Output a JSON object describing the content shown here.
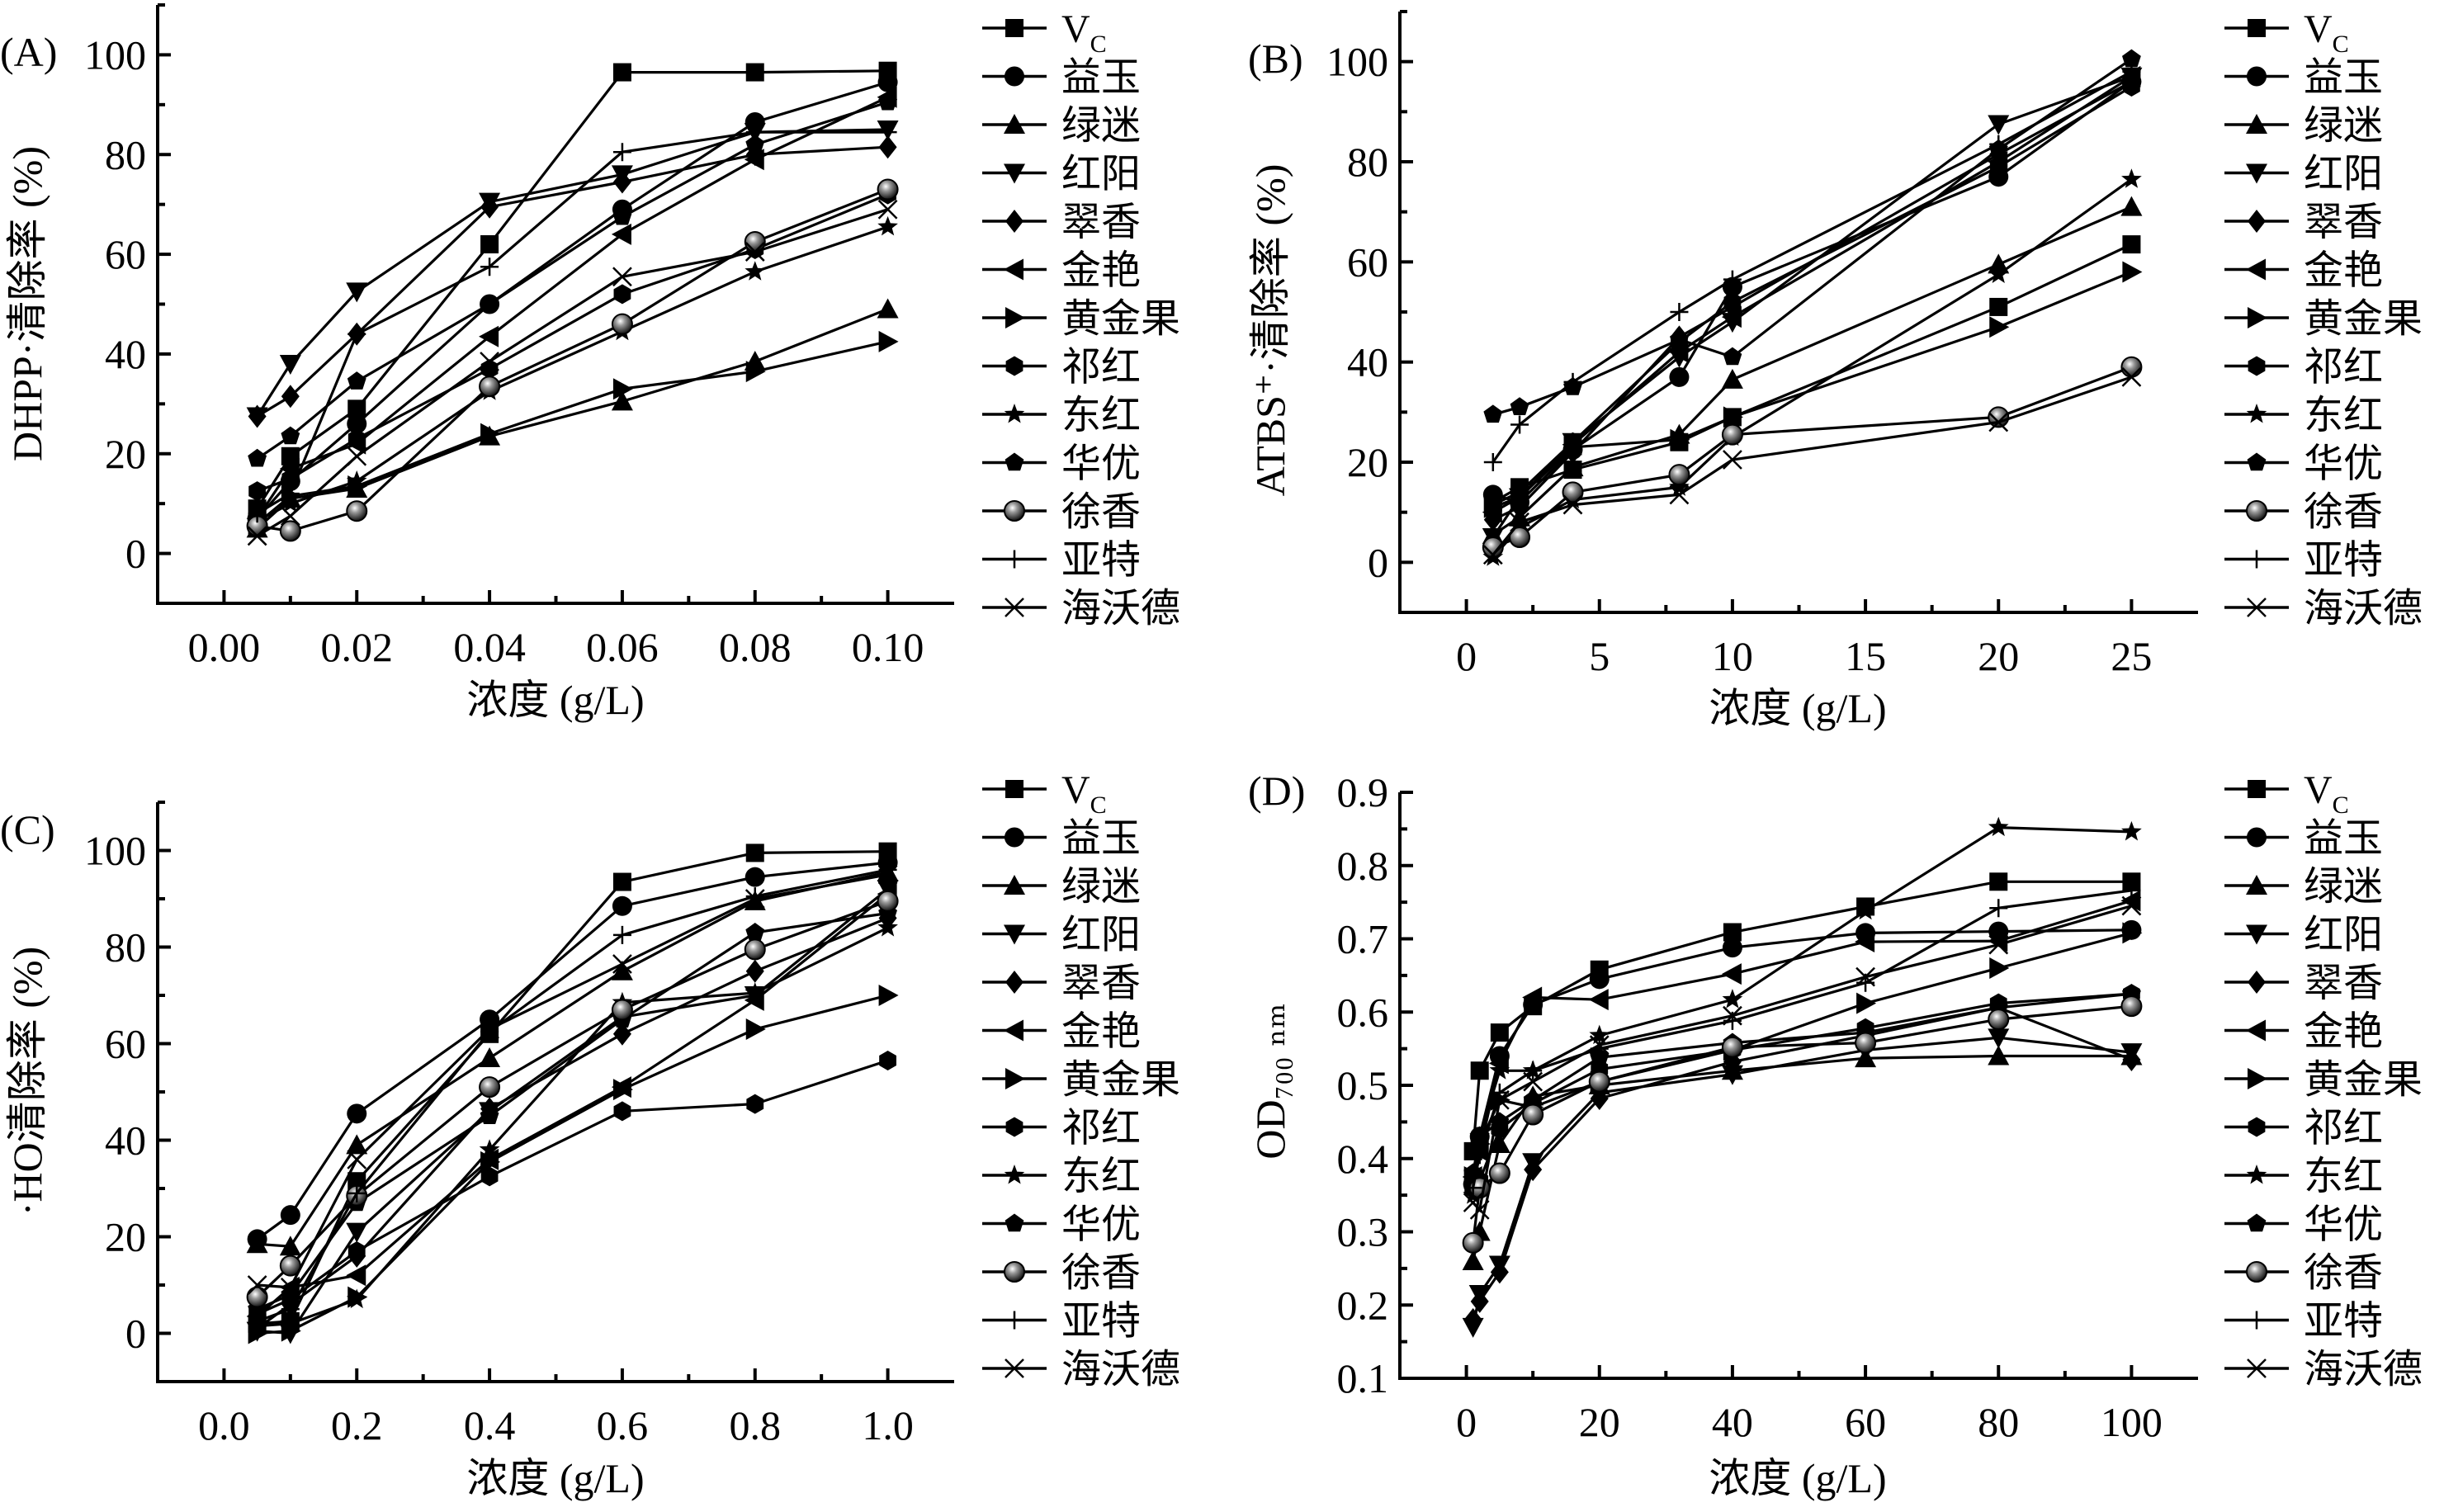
{
  "figure": {
    "legend_entries": [
      "V_C",
      "益玉",
      "绿迷",
      "红阳",
      "翠香",
      "金艳",
      "黄金果",
      "祁红",
      "东红",
      "华优",
      "徐香",
      "亚特",
      "海沃德"
    ],
    "legend_markers": [
      "square",
      "circle",
      "triangle-up",
      "triangle-down",
      "diamond",
      "triangle-left",
      "triangle-right",
      "hexagon",
      "star",
      "pentagon",
      "sphere",
      "plus",
      "cross"
    ]
  },
  "chart_data": [
    {
      "id": "A",
      "type": "line",
      "panel_label": "(A)",
      "title": "",
      "xlabel": "浓度 (g/L)",
      "ylabel": "DHPP·清除率 (%)",
      "xlim": [
        -0.01,
        0.11
      ],
      "ylim": [
        -10,
        110
      ],
      "xticks": [
        0.0,
        0.02,
        0.04,
        0.06,
        0.08,
        0.1
      ],
      "xtick_labels": [
        "0.00",
        "0.02",
        "0.04",
        "0.06",
        "0.08",
        "0.10"
      ],
      "yticks": [
        0,
        20,
        40,
        60,
        80,
        100
      ],
      "ytick_labels": [
        "0",
        "20",
        "40",
        "60",
        "80",
        "100"
      ],
      "legend_position": "right",
      "grid": false,
      "x": [
        0.005,
        0.01,
        0.02,
        0.04,
        0.06,
        0.08,
        0.1
      ],
      "series": [
        {
          "name": "V_C",
          "values": [
            9,
            19.5,
            29,
            62,
            96.5,
            96.5,
            96.8
          ]
        },
        {
          "name": "益玉",
          "values": [
            7,
            14.5,
            26,
            50,
            69,
            86.5,
            94.5
          ]
        },
        {
          "name": "绿迷",
          "values": [
            5,
            11,
            13,
            23.5,
            30.5,
            38.5,
            49
          ]
        },
        {
          "name": "红阳",
          "values": [
            27.5,
            38,
            52.5,
            70.5,
            76,
            84.5,
            85
          ]
        },
        {
          "name": "翠香",
          "values": [
            27.5,
            31.5,
            44,
            69.5,
            74.5,
            80,
            81.5
          ]
        },
        {
          "name": "金艳",
          "values": [
            7,
            17,
            22,
            43.5,
            64,
            79,
            91.5
          ]
        },
        {
          "name": "黄金果",
          "values": [
            6,
            11.5,
            13.5,
            24,
            33,
            36.5,
            42.5
          ]
        },
        {
          "name": "祁红",
          "values": [
            12.5,
            15,
            23,
            37,
            52,
            61,
            72
          ]
        },
        {
          "name": "东红",
          "values": [
            6.5,
            10,
            14.5,
            32.5,
            44.5,
            56.5,
            65.5
          ]
        },
        {
          "name": "华优",
          "values": [
            19,
            23.5,
            34.5,
            50,
            67.5,
            82,
            90.5
          ]
        },
        {
          "name": "徐香",
          "values": [
            5.5,
            4.5,
            8.5,
            33.5,
            46,
            62.5,
            73
          ]
        },
        {
          "name": "亚特",
          "values": [
            8,
            12,
            44,
            57.5,
            80.5,
            84.5,
            84.5
          ]
        },
        {
          "name": "海沃德",
          "values": [
            3.5,
            7.5,
            19.5,
            38.5,
            55.5,
            60.5,
            69
          ]
        }
      ]
    },
    {
      "id": "B",
      "type": "line",
      "panel_label": "(B)",
      "title": "",
      "xlabel": "浓度 (g/L)",
      "ylabel": "ATBS⁺·清除率 (%)",
      "xlim": [
        -2.5,
        27.5
      ],
      "ylim": [
        -10,
        110
      ],
      "xticks": [
        0,
        5,
        10,
        15,
        20,
        25
      ],
      "xtick_labels": [
        "0",
        "5",
        "10",
        "15",
        "20",
        "25"
      ],
      "yticks": [
        0,
        20,
        40,
        60,
        80,
        100
      ],
      "ytick_labels": [
        "0",
        "20",
        "40",
        "60",
        "80",
        "100"
      ],
      "legend_position": "right",
      "grid": false,
      "x": [
        1,
        2,
        4,
        8,
        10,
        20,
        25
      ],
      "series": [
        {
          "name": "V_C",
          "values": [
            12,
            15,
            18.5,
            24,
            29,
            51,
            63.5
          ]
        },
        {
          "name": "益玉",
          "values": [
            13.5,
            12,
            22.5,
            37,
            55,
            77,
            96
          ]
        },
        {
          "name": "绿迷",
          "values": [
            5.5,
            9,
            19,
            25.5,
            36.5,
            59.5,
            71
          ]
        },
        {
          "name": "红阳",
          "values": [
            5,
            13,
            24,
            41,
            48,
            87.5,
            97
          ]
        },
        {
          "name": "翠香",
          "values": [
            8.5,
            11,
            22,
            45,
            51,
            81.5,
            96
          ]
        },
        {
          "name": "金艳",
          "values": [
            10,
            13,
            23.5,
            42,
            49,
            80,
            97
          ]
        },
        {
          "name": "黄金果",
          "values": [
            11,
            13,
            23,
            24.5,
            29,
            47,
            58
          ]
        },
        {
          "name": "祁红",
          "values": [
            11.5,
            14,
            24,
            44,
            52,
            79,
            95
          ]
        },
        {
          "name": "东红",
          "values": [
            1,
            7,
            12.5,
            15,
            25,
            57.5,
            76.5
          ]
        },
        {
          "name": "华优",
          "values": [
            29.5,
            31,
            35,
            44.5,
            41,
            82.5,
            100.5
          ]
        },
        {
          "name": "徐香",
          "values": [
            3,
            5,
            14,
            17.5,
            25.5,
            29,
            39
          ]
        },
        {
          "name": "亚特",
          "values": [
            20,
            27.5,
            36,
            50,
            56.5,
            83.5,
            98
          ]
        },
        {
          "name": "海沃德",
          "values": [
            1.5,
            8,
            11.5,
            13.5,
            20.5,
            28,
            37
          ]
        }
      ]
    },
    {
      "id": "C",
      "type": "line",
      "panel_label": "(C)",
      "title": "",
      "xlabel": "浓度 (g/L)",
      "ylabel": "·HO清除率 (%)",
      "xlim": [
        -0.1,
        1.1
      ],
      "ylim": [
        -10,
        110
      ],
      "xticks": [
        0.0,
        0.2,
        0.4,
        0.6,
        0.8,
        1.0
      ],
      "xtick_labels": [
        "0.0",
        "0.2",
        "0.4",
        "0.6",
        "0.8",
        "1.0"
      ],
      "yticks": [
        0,
        20,
        40,
        60,
        80,
        100
      ],
      "ytick_labels": [
        "0",
        "20",
        "40",
        "60",
        "80",
        "100"
      ],
      "legend_position": "right",
      "grid": false,
      "x": [
        0.05,
        0.1,
        0.2,
        0.4,
        0.6,
        0.8,
        1.0
      ],
      "series": [
        {
          "name": "V_C",
          "values": [
            2,
            2.5,
            31.5,
            62,
            93.5,
            99.5,
            99.8
          ]
        },
        {
          "name": "益玉",
          "values": [
            19.5,
            24.5,
            45.5,
            65,
            88.5,
            94.5,
            97.5
          ]
        },
        {
          "name": "绿迷",
          "values": [
            18.5,
            18,
            39,
            57,
            75,
            89.5,
            95.5
          ]
        },
        {
          "name": "红阳",
          "values": [
            0.5,
            0,
            21,
            46,
            65.5,
            70,
            92
          ]
        },
        {
          "name": "翠香",
          "values": [
            1,
            6,
            16,
            46.5,
            62,
            75,
            86
          ]
        },
        {
          "name": "金艳",
          "values": [
            3.5,
            9.5,
            12,
            36,
            51,
            69,
            91
          ]
        },
        {
          "name": "黄金果",
          "values": [
            0,
            0.5,
            7.5,
            35.5,
            50.5,
            63,
            70
          ]
        },
        {
          "name": "祁红",
          "values": [
            4,
            7,
            17,
            32.5,
            46,
            47.5,
            56.5
          ]
        },
        {
          "name": "东红",
          "values": [
            1.5,
            2,
            7,
            38,
            68.5,
            70.5,
            84
          ]
        },
        {
          "name": "华优",
          "values": [
            5,
            8,
            27,
            45,
            65,
            83,
            87
          ]
        },
        {
          "name": "徐香",
          "values": [
            7.5,
            14,
            28.5,
            51,
            67,
            79.5,
            89.5
          ]
        },
        {
          "name": "亚特",
          "values": [
            2.5,
            5,
            29,
            62.5,
            82.5,
            90.5,
            96
          ]
        },
        {
          "name": "海沃德",
          "values": [
            10,
            9.5,
            36,
            63,
            76.5,
            90,
            95
          ]
        }
      ]
    },
    {
      "id": "D",
      "type": "line",
      "panel_label": "(D)",
      "title": "",
      "xlabel": "浓度 (g/L)",
      "ylabel": "OD₇₀₀ ₙₘ",
      "xlim": [
        -10,
        110
      ],
      "ylim": [
        0.1,
        0.9
      ],
      "xticks": [
        0,
        20,
        40,
        60,
        80,
        100
      ],
      "xtick_labels": [
        "0",
        "20",
        "40",
        "60",
        "80",
        "100"
      ],
      "yticks": [
        0.1,
        0.2,
        0.3,
        0.4,
        0.5,
        0.6,
        0.7,
        0.8,
        0.9
      ],
      "ytick_labels": [
        "0.1",
        "0.2",
        "0.3",
        "0.4",
        "0.5",
        "0.6",
        "0.7",
        "0.8",
        "0.9"
      ],
      "legend_position": "right",
      "grid": false,
      "x": [
        1,
        2,
        5,
        10,
        20,
        40,
        60,
        80,
        100
      ],
      "series": [
        {
          "name": "V_C",
          "values": [
            0.41,
            0.52,
            0.572,
            0.608,
            0.658,
            0.709,
            0.744,
            0.778,
            0.778
          ]
        },
        {
          "name": "益玉",
          "values": [
            0.365,
            0.43,
            0.54,
            0.61,
            0.645,
            0.688,
            0.708,
            0.71,
            0.712
          ]
        },
        {
          "name": "绿迷",
          "values": [
            0.26,
            0.3,
            0.42,
            0.485,
            0.5,
            0.52,
            0.537,
            0.54,
            0.54
          ]
        },
        {
          "name": "红阳",
          "values": [
            0.17,
            0.215,
            0.255,
            0.395,
            0.49,
            0.515,
            0.548,
            0.565,
            0.545
          ]
        },
        {
          "name": "翠香",
          "values": [
            0.18,
            0.205,
            0.245,
            0.385,
            0.482,
            0.532,
            0.568,
            0.606,
            0.535
          ]
        },
        {
          "name": "金艳",
          "values": [
            0.375,
            0.41,
            0.53,
            0.62,
            0.617,
            0.652,
            0.696,
            0.697,
            0.752
          ]
        },
        {
          "name": "黄金果",
          "values": [
            0.375,
            0.42,
            0.48,
            0.47,
            0.505,
            0.548,
            0.612,
            0.66,
            0.708
          ]
        },
        {
          "name": "祁红",
          "values": [
            0.36,
            0.37,
            0.44,
            0.475,
            0.522,
            0.548,
            0.578,
            0.612,
            0.625
          ]
        },
        {
          "name": "东红",
          "values": [
            0.35,
            0.43,
            0.52,
            0.52,
            0.568,
            0.617,
            0.738,
            0.852,
            0.846
          ]
        },
        {
          "name": "华优",
          "values": [
            0.38,
            0.43,
            0.45,
            0.48,
            0.538,
            0.558,
            0.572,
            0.606,
            0.625
          ]
        },
        {
          "name": "徐香",
          "values": [
            0.285,
            0.36,
            0.38,
            0.46,
            0.505,
            0.552,
            0.558,
            0.59,
            0.608
          ]
        },
        {
          "name": "亚特",
          "values": [
            0.36,
            0.405,
            0.49,
            0.52,
            0.55,
            0.588,
            0.64,
            0.742,
            0.766
          ]
        },
        {
          "name": "海沃德",
          "values": [
            0.34,
            0.33,
            0.48,
            0.505,
            0.555,
            0.595,
            0.648,
            0.692,
            0.745
          ]
        }
      ]
    }
  ]
}
